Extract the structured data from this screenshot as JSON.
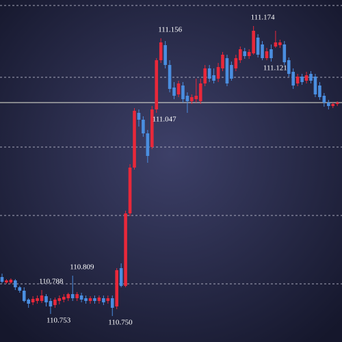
{
  "chart_data": {
    "type": "candlestick",
    "up_color": "#e8283a",
    "down_color": "#4a8ee0",
    "ylim": [
      110.712,
      111.212
    ],
    "yticks": [
      110.797,
      110.897,
      110.997,
      111.099,
      111.204
    ],
    "grid": true,
    "price_line": 111.062,
    "open": [
      110.807,
      110.799,
      110.799,
      110.802,
      110.792,
      110.787,
      110.774,
      110.77,
      110.772,
      110.772,
      110.779,
      110.772,
      110.766,
      110.772,
      110.774,
      110.776,
      110.782,
      110.776,
      110.78,
      110.776,
      110.772,
      110.776,
      110.772,
      110.776,
      110.772,
      110.776,
      110.764,
      110.82,
      110.794,
      110.9,
      110.967,
      111.047,
      111.037,
      111.017,
      110.997,
      111.052,
      111.124,
      111.146,
      111.117,
      111.084,
      111.074,
      111.087,
      111.072,
      111.064,
      111.067,
      111.064,
      111.09,
      111.112,
      111.102,
      111.097,
      111.112,
      111.127,
      111.117,
      111.112,
      111.124,
      111.137,
      111.13,
      111.134,
      111.157,
      111.147,
      111.127,
      111.14,
      111.144,
      111.146,
      111.147,
      111.124,
      111.107,
      111.09,
      111.1,
      111.094,
      111.104,
      111.1,
      111.087,
      111.072,
      111.062,
      111.057,
      111.06
    ],
    "high": [
      110.812,
      110.804,
      110.805,
      110.804,
      110.794,
      110.792,
      110.776,
      110.779,
      110.78,
      110.788,
      110.782,
      110.776,
      110.777,
      110.78,
      110.782,
      110.784,
      110.809,
      110.785,
      110.784,
      110.78,
      110.779,
      110.78,
      110.78,
      110.78,
      110.78,
      110.78,
      110.82,
      110.827,
      110.904,
      110.972,
      111.054,
      111.052,
      111.042,
      111.022,
      111.057,
      111.127,
      111.156,
      111.152,
      111.124,
      111.092,
      111.094,
      111.092,
      111.077,
      111.074,
      111.097,
      111.097,
      111.117,
      111.117,
      111.112,
      111.12,
      111.136,
      111.132,
      111.122,
      111.132,
      111.144,
      111.142,
      111.14,
      111.174,
      111.162,
      111.152,
      111.142,
      111.147,
      111.167,
      111.154,
      111.152,
      111.128,
      111.112,
      111.104,
      111.104,
      111.107,
      111.108,
      111.104,
      111.092,
      111.076,
      111.066,
      111.062,
      111.064
    ],
    "low": [
      110.798,
      110.797,
      110.797,
      110.788,
      110.784,
      110.77,
      110.762,
      110.766,
      110.768,
      110.769,
      110.764,
      110.753,
      110.762,
      110.767,
      110.77,
      110.772,
      110.772,
      110.772,
      110.77,
      110.768,
      110.768,
      110.768,
      110.768,
      110.766,
      110.768,
      110.75,
      110.76,
      110.792,
      110.792,
      110.896,
      110.964,
      111.027,
      111.012,
      110.974,
      110.994,
      111.047,
      111.12,
      111.112,
      111.077,
      111.067,
      111.07,
      111.062,
      111.047,
      111.06,
      111.062,
      111.06,
      111.086,
      111.092,
      111.09,
      111.092,
      111.108,
      111.086,
      111.094,
      111.108,
      111.12,
      111.126,
      111.126,
      111.132,
      111.128,
      111.124,
      111.124,
      111.122,
      111.142,
      111.142,
      111.117,
      111.1,
      111.082,
      111.086,
      111.088,
      111.09,
      111.09,
      111.07,
      111.066,
      111.056,
      111.052,
      111.054,
      111.057
    ],
    "close": [
      110.8,
      110.802,
      110.803,
      110.792,
      110.787,
      110.772,
      110.768,
      110.775,
      110.776,
      110.78,
      110.77,
      110.764,
      110.774,
      110.776,
      110.778,
      110.782,
      110.776,
      110.782,
      110.774,
      110.772,
      110.776,
      110.772,
      110.777,
      110.77,
      110.776,
      110.762,
      110.817,
      110.794,
      110.9,
      110.967,
      111.05,
      111.037,
      111.017,
      110.984,
      111.052,
      111.124,
      111.15,
      111.117,
      111.082,
      111.072,
      111.09,
      111.067,
      111.064,
      111.07,
      111.072,
      111.09,
      111.112,
      111.097,
      111.094,
      111.114,
      111.132,
      111.09,
      111.097,
      111.127,
      111.14,
      111.13,
      111.136,
      111.167,
      111.132,
      111.127,
      111.137,
      111.127,
      111.15,
      111.15,
      111.121,
      111.104,
      111.087,
      111.1,
      111.092,
      111.102,
      111.094,
      111.074,
      111.07,
      111.062,
      111.057,
      111.06,
      111.062
    ],
    "annotations": [
      {
        "value": 110.788,
        "label": "110.788"
      },
      {
        "value": 110.809,
        "label": "110.809"
      },
      {
        "value": 110.753,
        "label": "110.753"
      },
      {
        "value": 110.75,
        "label": "110.750"
      },
      {
        "value": 111.156,
        "label": "111.156"
      },
      {
        "value": 111.047,
        "label": "111.047"
      },
      {
        "value": 111.174,
        "label": "111.174"
      },
      {
        "value": 111.121,
        "label": "111.121"
      }
    ]
  }
}
